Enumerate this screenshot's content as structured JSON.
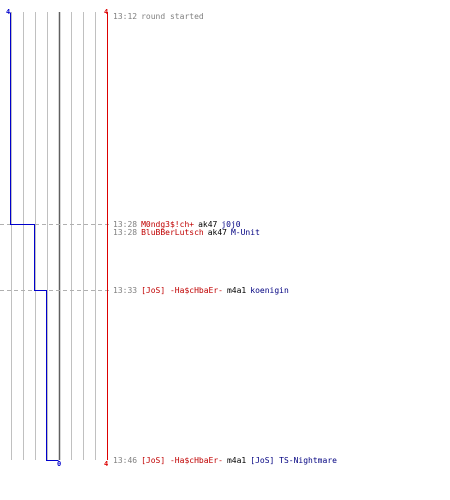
{
  "colors": {
    "team_a": "#0000cc",
    "team_b": "#dd0000",
    "grid": "#c0c0c0",
    "center": "#606060",
    "guide": "#b0b0b0"
  },
  "scores": {
    "top_left": "4",
    "top_right": "4",
    "bottom_center": "0",
    "bottom_right": "4"
  },
  "chart_data": {
    "type": "line",
    "series": [
      {
        "steps": [
          [
            0,
            0
          ],
          [
            1,
            208
          ],
          [
            2,
            274
          ],
          [
            3,
            444
          ]
        ]
      }
    ]
  },
  "events": [
    {
      "time": "13:12",
      "text": "round started",
      "kind": "start"
    },
    {
      "time": "13:28",
      "killer": "M0ndg3$!ch+",
      "weapon": "ak47",
      "victim": "j0j0",
      "kind": "kill"
    },
    {
      "time": "13:28",
      "killer": "BluBBerLutsch",
      "weapon": "ak47",
      "victim": "M-Unit",
      "kind": "kill"
    },
    {
      "time": "13:33",
      "killer": "[JoS] -Ha$cHbaEr-",
      "weapon": "m4a1",
      "victim": "koenigin",
      "kind": "kill"
    },
    {
      "time": "13:46",
      "killer": "[JoS] -Ha$cHbaEr-",
      "weapon": "m4a1",
      "victim": "[JoS] TS-Nightmare",
      "kind": "kill"
    }
  ]
}
